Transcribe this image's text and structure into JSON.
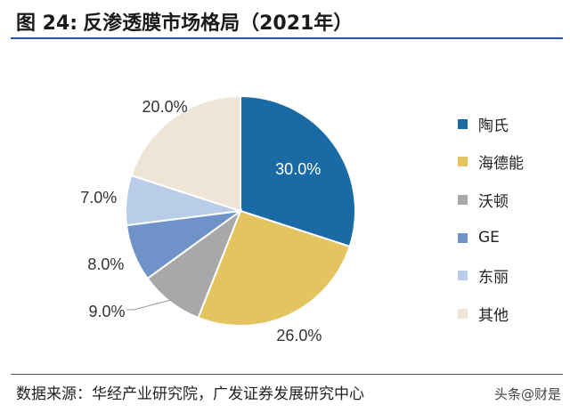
{
  "header": {
    "figure_label": "图 24:",
    "title": "反渗透膜市场格局（2021年）"
  },
  "chart_data": {
    "type": "pie",
    "title": "反渗透膜市场格局（2021年）",
    "categories": [
      "陶氏",
      "海德能",
      "沃顿",
      "GE",
      "东丽",
      "其他"
    ],
    "values": [
      30.0,
      26.0,
      9.0,
      8.0,
      7.0,
      20.0
    ],
    "value_labels": [
      "30.0%",
      "26.0%",
      "9.0%",
      "8.0%",
      "7.0%",
      "20.0%"
    ],
    "colors": [
      "#1a6aa6",
      "#e3c45e",
      "#a8a8a8",
      "#6f93c8",
      "#b9cde9",
      "#efe5d6"
    ],
    "legend_position": "right"
  },
  "footer": {
    "source": "数据来源：华经产业研究院，广发证券发展研究中心",
    "watermark": "头条@财是"
  }
}
